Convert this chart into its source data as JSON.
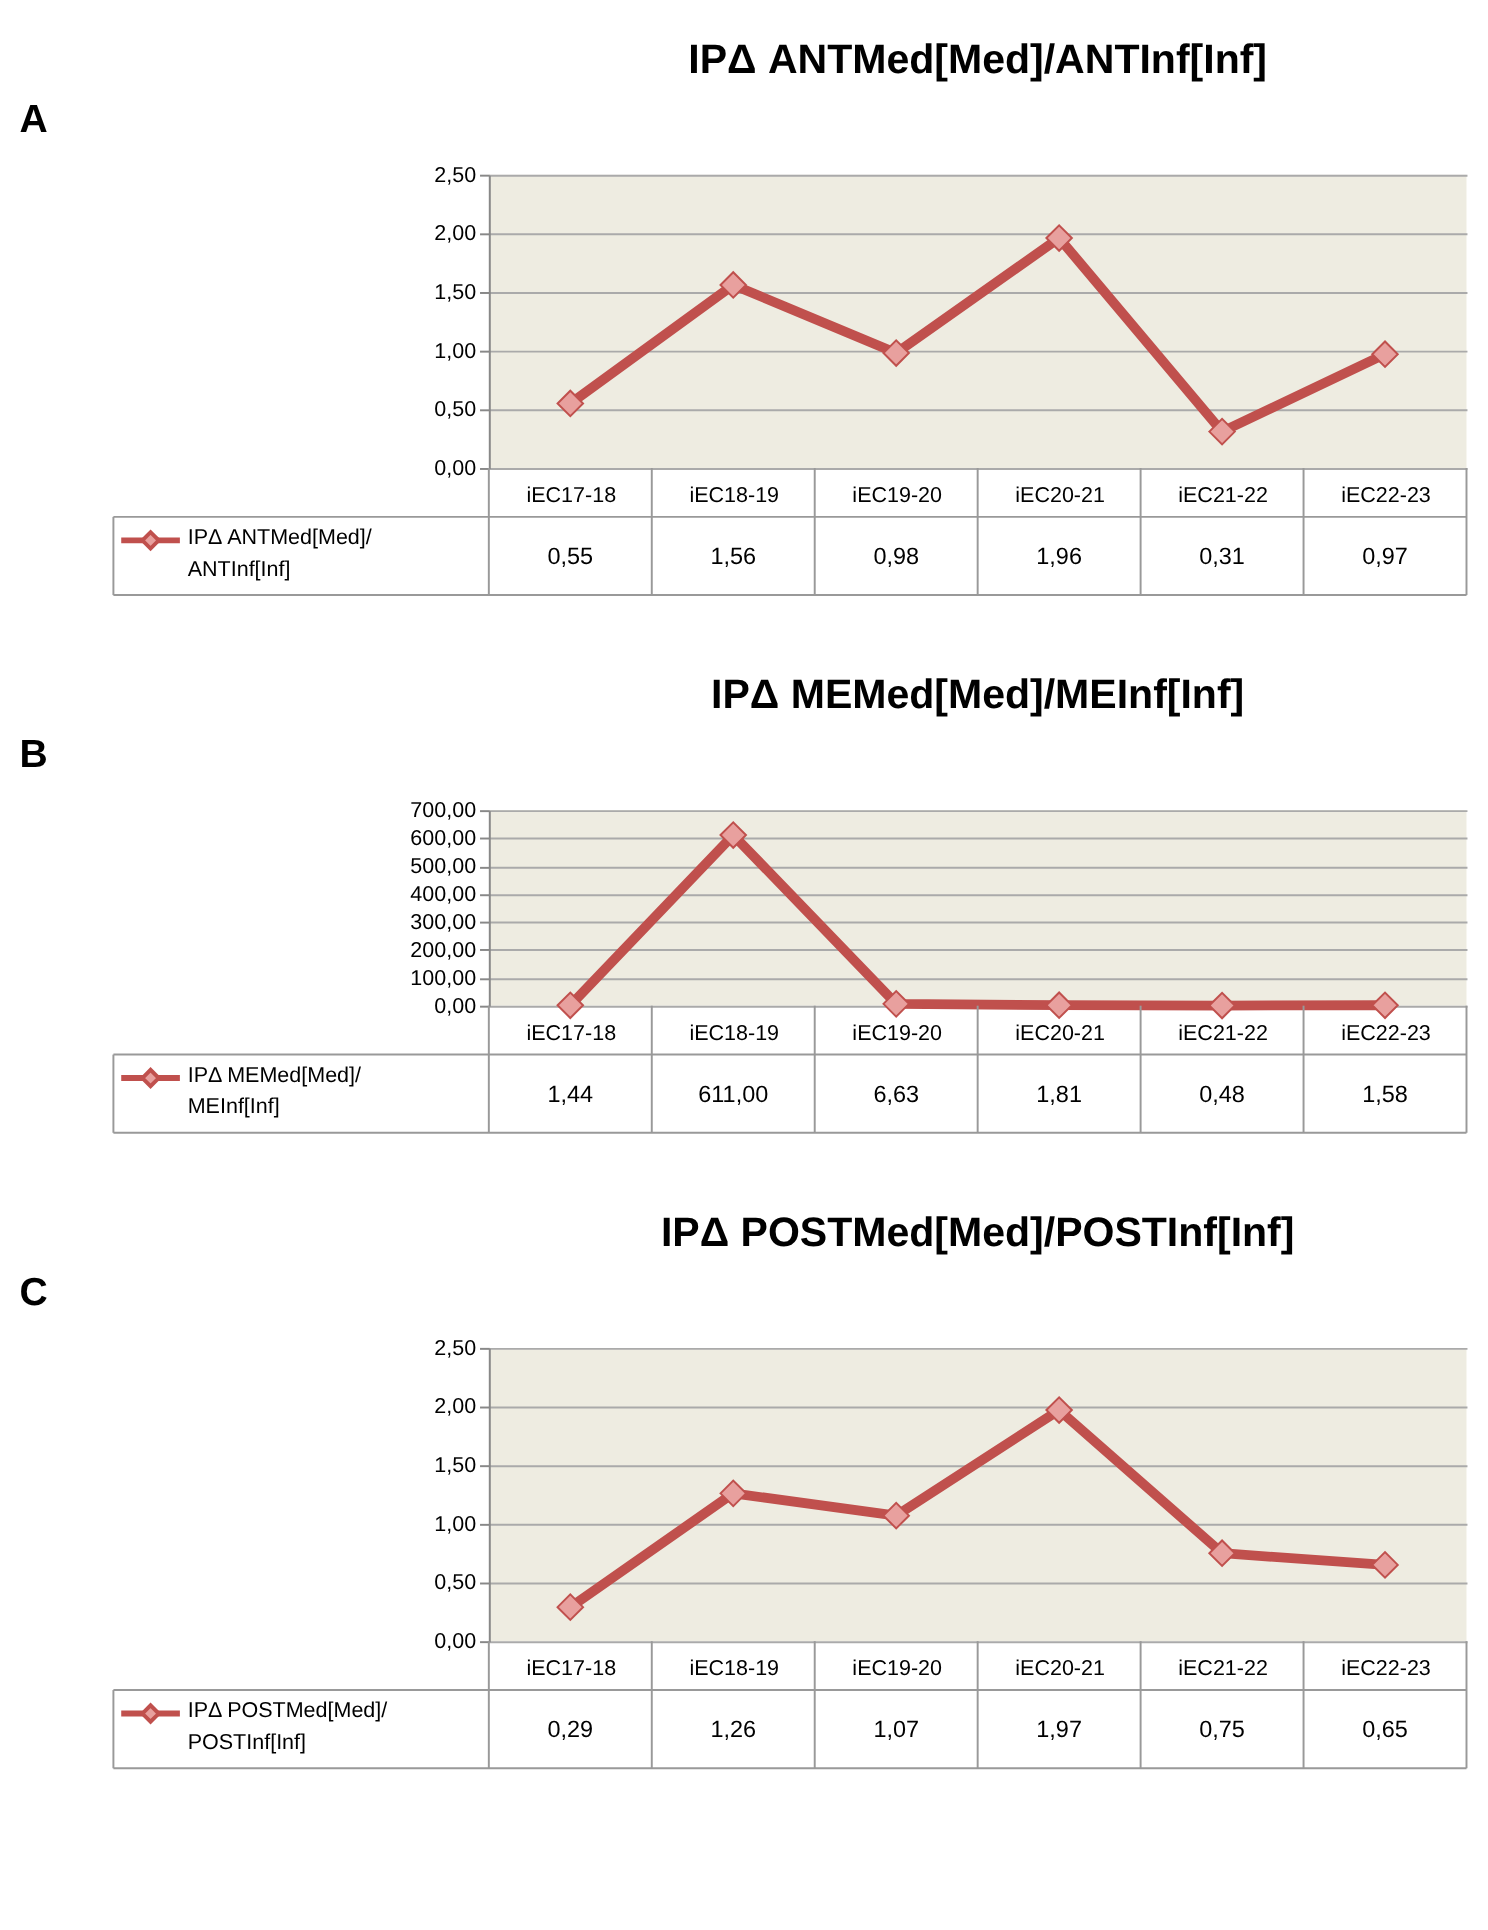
{
  "chart_data": [
    {
      "type": "line",
      "title": "IPΔ ANTMed[Med]/ANTInf[Inf]",
      "annotations": [
        "A"
      ],
      "categories": [
        "iEC17-18",
        "iEC18-19",
        "iEC19-20",
        "iEC20-21",
        "iEC21-22",
        "iEC22-23"
      ],
      "series": [
        {
          "name": "IPΔ ANTMed[Med]/ANTInf[Inf]",
          "color": "#c0504d",
          "values": [
            0.55,
            1.56,
            0.98,
            1.96,
            0.31,
            0.97
          ],
          "value_labels": [
            "0,55",
            "1,56",
            "0,98",
            "1,96",
            "0,31",
            "0,97"
          ]
        }
      ],
      "ylim": [
        0,
        2.5
      ],
      "yticks": [
        {
          "value": 0,
          "label": "0,00"
        },
        {
          "value": 0.5,
          "label": "0,50"
        },
        {
          "value": 1,
          "label": "1,00"
        },
        {
          "value": 1.5,
          "label": "1,50"
        },
        {
          "value": 2,
          "label": "2,00"
        },
        {
          "value": 2.5,
          "label": "2,50"
        }
      ],
      "grid": "y",
      "legend": "bottom",
      "marker": "diamond",
      "line_style": "solid"
    },
    {
      "type": "line",
      "title": "IPΔ MEMed[Med]/MEInf[Inf]",
      "annotations": [
        "B"
      ],
      "categories": [
        "iEC17-18",
        "iEC18-19",
        "iEC19-20",
        "iEC20-21",
        "iEC21-22",
        "iEC22-23"
      ],
      "series": [
        {
          "name": "IPΔ MEMed[Med]/MEInf[Inf]",
          "color": "#c0504d",
          "values": [
            1.44,
            611,
            6.63,
            1.81,
            0.48,
            1.58
          ],
          "value_labels": [
            "1,44",
            "611,00",
            "6,63",
            "1,81",
            "0,48",
            "1,58"
          ]
        }
      ],
      "ylim": [
        0,
        700
      ],
      "yticks": [
        {
          "value": 0,
          "label": "0,00"
        },
        {
          "value": 100,
          "label": "100,00"
        },
        {
          "value": 200,
          "label": "200,00"
        },
        {
          "value": 300,
          "label": "300,00"
        },
        {
          "value": 400,
          "label": "400,00"
        },
        {
          "value": 500,
          "label": "500,00"
        },
        {
          "value": 600,
          "label": "600,00"
        },
        {
          "value": 700,
          "label": "700,00"
        }
      ],
      "grid": "y",
      "legend": "bottom",
      "marker": "diamond",
      "line_style": "solid"
    },
    {
      "type": "line",
      "title": "IPΔ POSTMed[Med]/POSTInf[Inf]",
      "annotations": [
        "C"
      ],
      "categories": [
        "iEC17-18",
        "iEC18-19",
        "iEC19-20",
        "iEC20-21",
        "iEC21-22",
        "iEC22-23"
      ],
      "series": [
        {
          "name": "IPΔ POSTMed[Med]/POSTInf[Inf]",
          "color": "#c0504d",
          "values": [
            0.29,
            1.26,
            1.07,
            1.97,
            0.75,
            0.65
          ],
          "value_labels": [
            "0,29",
            "1,26",
            "1,07",
            "1,97",
            "0,75",
            "0,65"
          ]
        }
      ],
      "ylim": [
        0,
        2.5
      ],
      "yticks": [
        {
          "value": 0,
          "label": "0,00"
        },
        {
          "value": 0.5,
          "label": "0,50"
        },
        {
          "value": 1,
          "label": "1,00"
        },
        {
          "value": 1.5,
          "label": "1,50"
        },
        {
          "value": 2,
          "label": "2,00"
        },
        {
          "value": 2.5,
          "label": "2,50"
        }
      ],
      "grid": "y",
      "legend": "bottom",
      "marker": "diamond",
      "line_style": "solid"
    }
  ]
}
